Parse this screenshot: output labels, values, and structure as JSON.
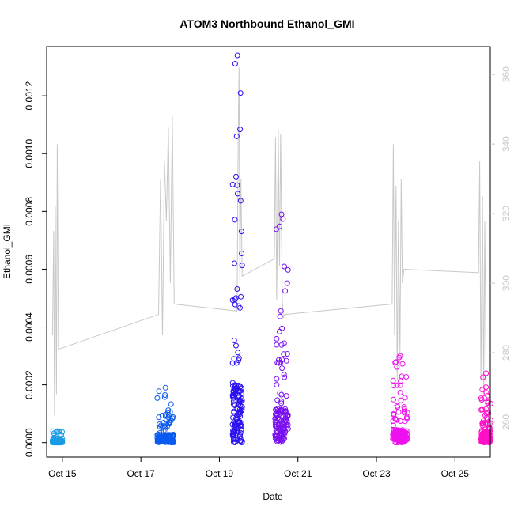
{
  "chart_data": {
    "type": "scatter",
    "title": "ATOM3 Northbound Ethanol_GMI",
    "xlabel": "Date",
    "ylabel": "Ethanol_GMI",
    "ylim": [
      0,
      0.00135
    ],
    "y_ticks": [
      "0.0000",
      "0.0002",
      "0.0004",
      "0.0006",
      "0.0008",
      "0.0010",
      "0.0012"
    ],
    "y_tick_values": [
      0,
      0.0002,
      0.0004,
      0.0006,
      0.0008,
      0.001,
      0.0012
    ],
    "xlim_days": [
      14.6,
      25.9
    ],
    "x_ticks": [
      "Oct 15",
      "Oct 17",
      "Oct 19",
      "Oct 21",
      "Oct 23",
      "Oct 25"
    ],
    "x_tick_values_day": [
      15,
      17,
      19,
      21,
      23,
      25
    ],
    "y2lim": [
      250,
      368
    ],
    "y2_ticks": [
      "260",
      "280",
      "300",
      "320",
      "340",
      "360"
    ],
    "y2_tick_values": [
      260,
      280,
      300,
      320,
      340,
      360
    ],
    "y2_color": "#c8c8c8",
    "point_colors": [
      "#1a9be6",
      "#0a5af0",
      "#2a10f0",
      "#7a10f0",
      "#ee10ee",
      "#ff10c8"
    ],
    "clusters": [
      {
        "x_start": "Oct 14 18:00",
        "x_end": "Oct 15 00:00",
        "ymax": 4e-05,
        "color": "#1a9be6"
      },
      {
        "x_start": "Oct 17 10:00",
        "x_end": "Oct 17 20:00",
        "ymax": 0.00019,
        "color": "#0a5af0"
      },
      {
        "x_start": "Oct 19 08:00",
        "x_end": "Oct 19 14:00",
        "ymax": 0.00134,
        "color": "#2a10f0"
      },
      {
        "x_start": "Oct 20 10:00",
        "x_end": "Oct 20 18:00",
        "ymax": 0.00079,
        "color": "#7a10f0"
      },
      {
        "x_start": "Oct 23 10:00",
        "x_end": "Oct 23 19:00",
        "ymax": 0.0003,
        "color": "#ee10ee"
      },
      {
        "x_start": "Oct 25 16:00",
        "x_end": "Oct 25 22:00",
        "ymax": 0.00024,
        "color": "#ff10c8"
      }
    ],
    "gray_series": [
      {
        "day": 14.75,
        "v": 285
      },
      {
        "day": 14.78,
        "v": 315
      },
      {
        "day": 14.8,
        "v": 262
      },
      {
        "day": 14.82,
        "v": 322
      },
      {
        "day": 14.85,
        "v": 268
      },
      {
        "day": 14.87,
        "v": 340
      },
      {
        "day": 14.9,
        "v": 281
      },
      {
        "day": 17.45,
        "v": 291
      },
      {
        "day": 17.5,
        "v": 330
      },
      {
        "day": 17.55,
        "v": 285
      },
      {
        "day": 17.6,
        "v": 335
      },
      {
        "day": 17.65,
        "v": 318
      },
      {
        "day": 17.7,
        "v": 345
      },
      {
        "day": 17.75,
        "v": 300
      },
      {
        "day": 17.8,
        "v": 348
      },
      {
        "day": 17.85,
        "v": 294
      },
      {
        "day": 19.45,
        "v": 292
      },
      {
        "day": 19.48,
        "v": 345
      },
      {
        "day": 19.5,
        "v": 362
      },
      {
        "day": 19.52,
        "v": 300
      },
      {
        "day": 19.55,
        "v": 330
      },
      {
        "day": 19.58,
        "v": 302
      },
      {
        "day": 20.4,
        "v": 307
      },
      {
        "day": 20.43,
        "v": 342
      },
      {
        "day": 20.46,
        "v": 295
      },
      {
        "day": 20.5,
        "v": 344
      },
      {
        "day": 20.53,
        "v": 305
      },
      {
        "day": 20.56,
        "v": 343
      },
      {
        "day": 20.6,
        "v": 295
      },
      {
        "day": 20.63,
        "v": 290
      },
      {
        "day": 20.66,
        "v": 291
      },
      {
        "day": 23.4,
        "v": 294
      },
      {
        "day": 23.43,
        "v": 340
      },
      {
        "day": 23.46,
        "v": 285
      },
      {
        "day": 23.5,
        "v": 328
      },
      {
        "day": 23.53,
        "v": 272
      },
      {
        "day": 23.56,
        "v": 318
      },
      {
        "day": 23.6,
        "v": 280
      },
      {
        "day": 23.63,
        "v": 330
      },
      {
        "day": 23.66,
        "v": 300
      },
      {
        "day": 23.7,
        "v": 304
      },
      {
        "day": 25.6,
        "v": 303
      },
      {
        "day": 25.63,
        "v": 335
      },
      {
        "day": 25.66,
        "v": 272
      },
      {
        "day": 25.7,
        "v": 325
      },
      {
        "day": 25.73,
        "v": 268
      },
      {
        "day": 25.76,
        "v": 318
      },
      {
        "day": 25.8,
        "v": 262
      }
    ]
  }
}
